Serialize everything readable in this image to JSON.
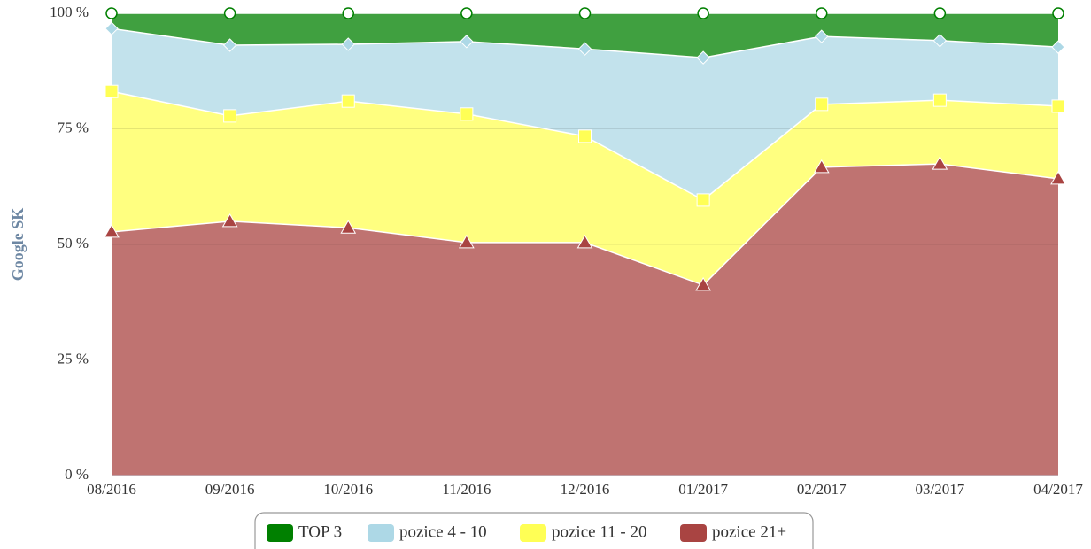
{
  "chart_data": {
    "type": "stacked_area",
    "y_axis_label": "Google SK",
    "categories": [
      "08/2016",
      "09/2016",
      "10/2016",
      "11/2016",
      "12/2016",
      "01/2017",
      "02/2017",
      "03/2017",
      "04/2017"
    ],
    "series": [
      {
        "name": "TOP 3",
        "color": "#008000",
        "values": [
          3.3,
          6.9,
          6.7,
          6.1,
          7.7,
          9.6,
          5.0,
          5.9,
          7.3
        ]
      },
      {
        "name": "pozice 4 - 10",
        "color": "#add8e6",
        "values": [
          13.6,
          15.3,
          12.3,
          15.7,
          18.9,
          30.8,
          14.7,
          12.9,
          12.8
        ]
      },
      {
        "name": "pozice 11 - 20",
        "color": "#ffff55",
        "values": [
          30.4,
          22.8,
          27.4,
          27.8,
          23.0,
          18.4,
          13.6,
          13.8,
          15.7
        ]
      },
      {
        "name": "pozice 21+",
        "color": "#a94442",
        "values": [
          52.7,
          55.0,
          53.6,
          50.4,
          50.4,
          41.2,
          66.7,
          67.4,
          64.2
        ]
      }
    ],
    "ylim": [
      0,
      100
    ],
    "yticks": [
      {
        "value": 0,
        "label": "0 %"
      },
      {
        "value": 25,
        "label": "25 %"
      },
      {
        "value": 50,
        "label": "50 %"
      },
      {
        "value": 75,
        "label": "75 %"
      },
      {
        "value": 100,
        "label": "100 %"
      }
    ],
    "grid": true,
    "legend": "bottom"
  }
}
